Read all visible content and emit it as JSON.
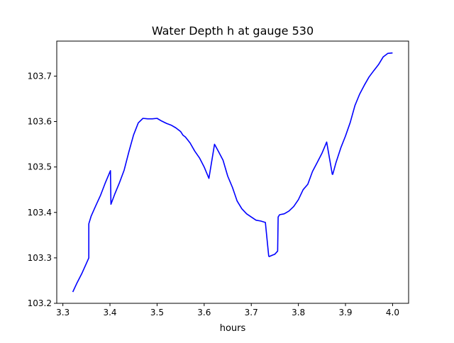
{
  "chart_data": {
    "type": "line",
    "title": "Water Depth h at gauge 530",
    "xlabel": "hours",
    "ylabel": "",
    "xlim": [
      3.287,
      4.034
    ],
    "ylim": [
      103.2,
      103.777
    ],
    "grid": false,
    "x_ticks": [
      3.3,
      3.4,
      3.5,
      3.6,
      3.7,
      3.8,
      3.9,
      4.0
    ],
    "x_tick_labels": [
      "3.3",
      "3.4",
      "3.5",
      "3.6",
      "3.7",
      "3.8",
      "3.9",
      "4.0"
    ],
    "y_ticks": [
      103.2,
      103.3,
      103.4,
      103.5,
      103.6,
      103.7
    ],
    "y_tick_labels": [
      "103.2",
      "103.3",
      "103.4",
      "103.5",
      "103.6",
      "103.7"
    ],
    "series": [
      {
        "color": "#0000ff",
        "x": [
          3.321,
          3.33,
          3.34,
          3.35,
          3.355,
          3.355,
          3.36,
          3.37,
          3.38,
          3.39,
          3.401,
          3.402,
          3.41,
          3.42,
          3.43,
          3.44,
          3.45,
          3.46,
          3.47,
          3.48,
          3.49,
          3.5,
          3.51,
          3.52,
          3.53,
          3.54,
          3.55,
          3.555,
          3.56,
          3.57,
          3.58,
          3.59,
          3.6,
          3.61,
          3.622,
          3.623,
          3.63,
          3.64,
          3.65,
          3.66,
          3.67,
          3.68,
          3.69,
          3.7,
          3.71,
          3.72,
          3.73,
          3.737,
          3.738,
          3.745,
          3.75,
          3.756,
          3.757,
          3.76,
          3.77,
          3.78,
          3.79,
          3.8,
          3.81,
          3.82,
          3.83,
          3.84,
          3.85,
          3.86,
          3.872,
          3.873,
          3.88,
          3.89,
          3.9,
          3.91,
          3.92,
          3.93,
          3.94,
          3.95,
          3.96,
          3.97,
          3.98,
          3.99,
          4.0
        ],
        "y": [
          103.225,
          103.245,
          103.265,
          103.288,
          103.3,
          103.375,
          103.392,
          103.415,
          103.438,
          103.465,
          103.492,
          103.418,
          103.44,
          103.465,
          103.493,
          103.533,
          103.57,
          103.597,
          103.607,
          103.606,
          103.606,
          103.607,
          103.601,
          103.596,
          103.592,
          103.586,
          103.578,
          103.57,
          103.566,
          103.553,
          103.535,
          103.52,
          103.5,
          103.475,
          103.55,
          103.548,
          103.535,
          103.515,
          103.48,
          103.455,
          103.425,
          103.408,
          103.397,
          103.39,
          103.383,
          103.381,
          103.378,
          103.304,
          103.303,
          103.306,
          103.308,
          103.315,
          103.39,
          103.395,
          103.397,
          103.403,
          103.413,
          103.428,
          103.45,
          103.462,
          103.49,
          103.51,
          103.53,
          103.555,
          103.484,
          103.484,
          103.51,
          103.542,
          103.568,
          103.598,
          103.635,
          103.66,
          103.68,
          103.698,
          103.712,
          103.725,
          103.742,
          103.75,
          103.751
        ]
      }
    ]
  }
}
